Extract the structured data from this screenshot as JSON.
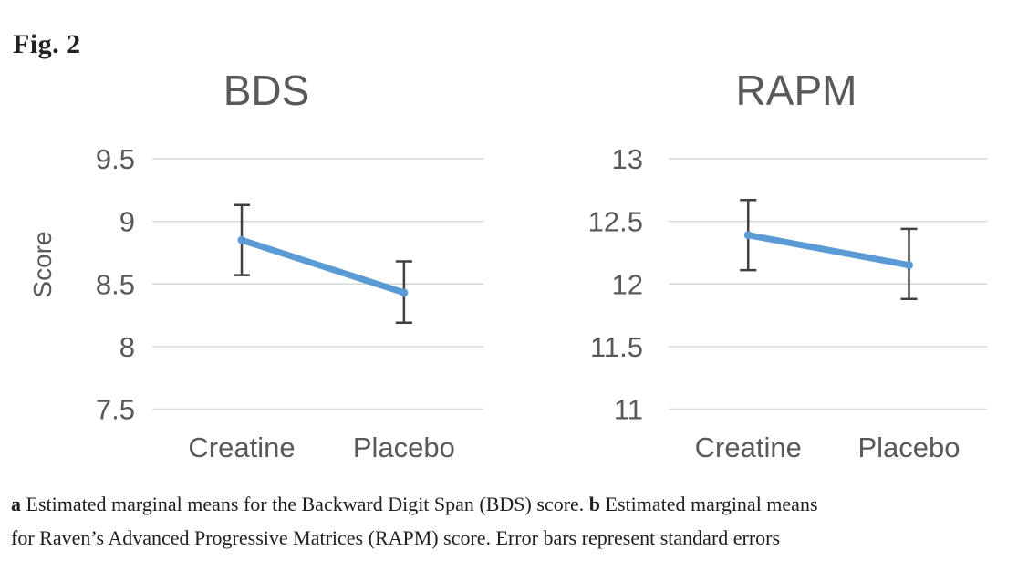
{
  "figure_label": "Fig. 2",
  "caption": {
    "part_a_label": "a",
    "part_a_text": " Estimated marginal means for the Backward Digit Span (BDS) score. ",
    "part_b_label": "b",
    "part_b_text_line1": " Estimated marginal means",
    "part_b_text_line2": "for Raven’s Advanced Progressive Matrices (RAPM) score. Error bars represent standard errors"
  },
  "colors": {
    "line": "#5B9BD5",
    "error_bar": "#404040",
    "gridline": "#D9D9D9",
    "axis_text": "#595959",
    "title_text": "#595959"
  },
  "chart_data": [
    {
      "type": "line",
      "title": "BDS",
      "ylabel": "Score",
      "categories": [
        "Creatine",
        "Placebo"
      ],
      "series": [
        {
          "name": "Estimated marginal mean",
          "values": [
            8.85,
            8.43
          ]
        }
      ],
      "error_low": [
        8.57,
        8.19
      ],
      "error_high": [
        9.13,
        8.68
      ],
      "yticks": [
        7.5,
        8,
        8.5,
        9,
        9.5
      ],
      "ylim": [
        7.5,
        9.5
      ],
      "grid": true,
      "legend": false
    },
    {
      "type": "line",
      "title": "RAPM",
      "ylabel": "",
      "categories": [
        "Creatine",
        "Placebo"
      ],
      "series": [
        {
          "name": "Estimated marginal mean",
          "values": [
            12.39,
            12.15
          ]
        }
      ],
      "error_low": [
        12.11,
        11.88
      ],
      "error_high": [
        12.67,
        12.44
      ],
      "yticks": [
        11,
        11.5,
        12,
        12.5,
        13
      ],
      "ylim": [
        11,
        13
      ],
      "grid": true,
      "legend": false
    }
  ]
}
